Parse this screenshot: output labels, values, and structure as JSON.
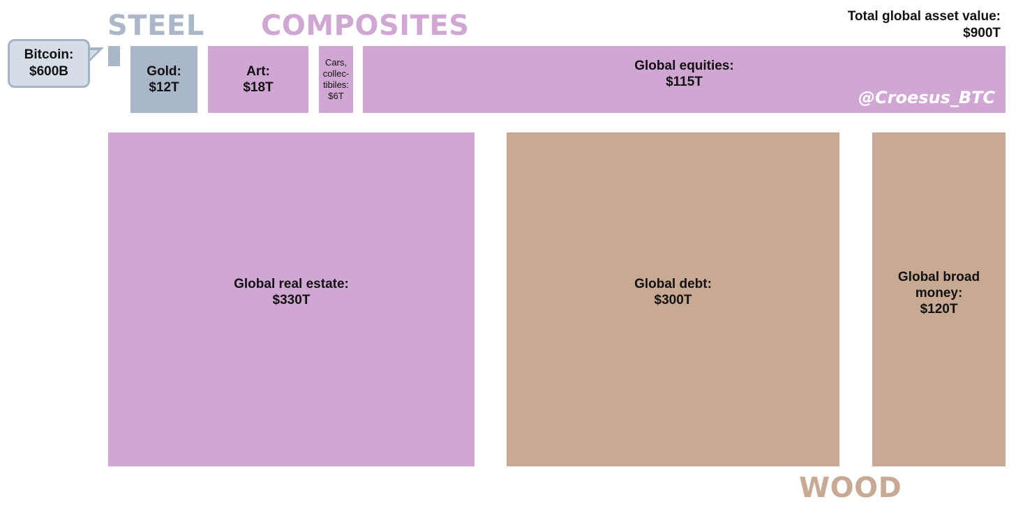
{
  "groups": {
    "steel": {
      "label": "STEEL",
      "color": "#aab7c9"
    },
    "composites": {
      "label": "COMPOSITES",
      "color": "#d0a6d2"
    },
    "wood": {
      "label": "WOOD",
      "color": "#c8aa94"
    }
  },
  "total": {
    "label": "Total global asset value:",
    "value": "$900T"
  },
  "watermark": "@Croesus_BTC",
  "callout": {
    "label": "Bitcoin:",
    "value": "$600B"
  },
  "chart_data": {
    "type": "treemap",
    "title": "",
    "unit": "USD trillions",
    "total_trillions": 900,
    "items": [
      {
        "name": "Bitcoin",
        "label": "",
        "value_label": "",
        "value": 0.6,
        "group": "steel"
      },
      {
        "name": "Gold",
        "label": "Gold:",
        "value_label": "$12T",
        "value": 12,
        "group": "steel"
      },
      {
        "name": "Art",
        "label": "Art:",
        "value_label": "$18T",
        "value": 18,
        "group": "composites"
      },
      {
        "name": "Cars, collectibles",
        "label": "Cars,\ncollec-\ntibiles:",
        "value_label": "$6T",
        "value": 6,
        "group": "composites"
      },
      {
        "name": "Global equities",
        "label": "Global equities:",
        "value_label": "$115T",
        "value": 115,
        "group": "composites"
      },
      {
        "name": "Global real estate",
        "label": "Global real estate:",
        "value_label": "$330T",
        "value": 330,
        "group": "composites"
      },
      {
        "name": "Global debt",
        "label": "Global debt:",
        "value_label": "$300T",
        "value": 300,
        "group": "wood"
      },
      {
        "name": "Global broad money",
        "label": "Global broad\nmoney:",
        "value_label": "$120T",
        "value": 120,
        "group": "wood"
      }
    ]
  }
}
